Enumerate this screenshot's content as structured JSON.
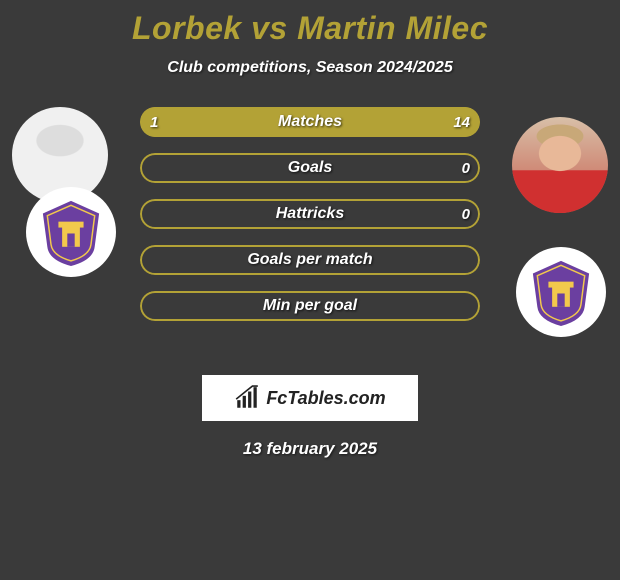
{
  "title": {
    "text": "Lorbek vs Martin Milec",
    "color": "#b3a236",
    "fontsize": 32,
    "fontweight": 800
  },
  "subtitle": "Club competitions, Season 2024/2025",
  "background_color": "#3a3a3a",
  "accent_color": "#b3a236",
  "border_color": "#b3a236",
  "text_color": "#ffffff",
  "player_left": {
    "name": "Lorbek",
    "club_colors": {
      "shield": "#6b3fa0",
      "accent": "#f2c94c",
      "bg": "#ffffff"
    }
  },
  "player_right": {
    "name": "Martin Milec",
    "club_colors": {
      "shield": "#6b3fa0",
      "accent": "#f2c94c",
      "bg": "#ffffff"
    }
  },
  "bars": [
    {
      "label": "Matches",
      "left_value": "1",
      "right_value": "14",
      "left_pct": 6.7,
      "right_pct": 93.3,
      "fill_color": "#b3a236",
      "show_values": true
    },
    {
      "label": "Goals",
      "left_value": "",
      "right_value": "0",
      "left_pct": 0,
      "right_pct": 0,
      "fill_color": "#b3a236",
      "show_values": true
    },
    {
      "label": "Hattricks",
      "left_value": "",
      "right_value": "0",
      "left_pct": 0,
      "right_pct": 0,
      "fill_color": "#b3a236",
      "show_values": true
    },
    {
      "label": "Goals per match",
      "left_value": "",
      "right_value": "",
      "left_pct": 0,
      "right_pct": 0,
      "fill_color": "#b3a236",
      "show_values": false
    },
    {
      "label": "Min per goal",
      "left_value": "",
      "right_value": "",
      "left_pct": 0,
      "right_pct": 0,
      "fill_color": "#b3a236",
      "show_values": false
    }
  ],
  "branding": {
    "text": "FcTables.com",
    "bg": "#ffffff",
    "icon_color": "#222222"
  },
  "date": "13 february 2025",
  "bar_style": {
    "height": 30,
    "gap": 16,
    "radius": 16,
    "border_width": 2,
    "label_fontsize": 16
  }
}
